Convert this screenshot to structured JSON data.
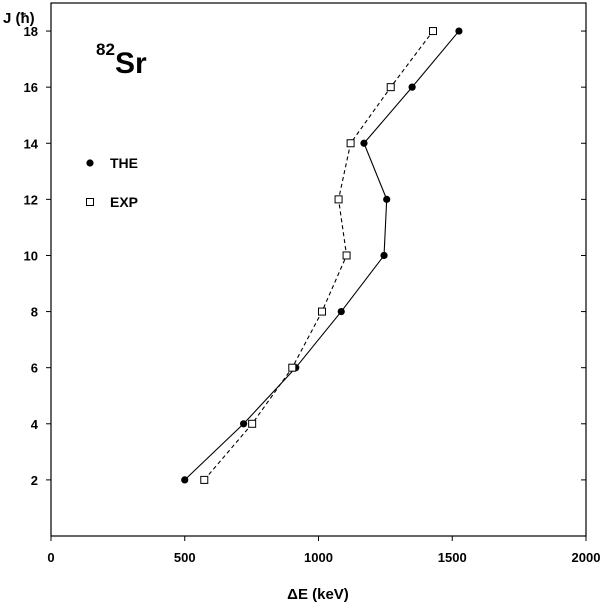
{
  "chart_data": {
    "type": "line",
    "xlabel": "ΔE (keV)",
    "ylabel": "J (ħ)",
    "xlim": [
      0,
      2000
    ],
    "ylim": [
      0,
      19
    ],
    "xticks": [
      0,
      500,
      1000,
      1500,
      2000
    ],
    "yticks": [
      2,
      4,
      6,
      8,
      10,
      12,
      14,
      16,
      18
    ],
    "grid": false,
    "legend_position": "left",
    "annotation": {
      "mass_number": "82",
      "element": "Sr"
    },
    "series": [
      {
        "name": "THE",
        "marker": "filled-circle",
        "line_style": "solid",
        "color": "#000000",
        "points": [
          {
            "x": 500,
            "y": 2
          },
          {
            "x": 720,
            "y": 4
          },
          {
            "x": 915,
            "y": 6
          },
          {
            "x": 1085,
            "y": 8
          },
          {
            "x": 1245,
            "y": 10
          },
          {
            "x": 1255,
            "y": 12
          },
          {
            "x": 1170,
            "y": 14
          },
          {
            "x": 1350,
            "y": 16
          },
          {
            "x": 1525,
            "y": 18
          }
        ]
      },
      {
        "name": "EXP",
        "marker": "open-square",
        "line_style": "dashed",
        "color": "#000000",
        "points": [
          {
            "x": 573,
            "y": 2
          },
          {
            "x": 752,
            "y": 4
          },
          {
            "x": 902,
            "y": 6
          },
          {
            "x": 1013,
            "y": 8
          },
          {
            "x": 1105,
            "y": 10
          },
          {
            "x": 1075,
            "y": 12
          },
          {
            "x": 1120,
            "y": 14
          },
          {
            "x": 1270,
            "y": 16
          },
          {
            "x": 1428,
            "y": 18
          }
        ]
      }
    ]
  }
}
